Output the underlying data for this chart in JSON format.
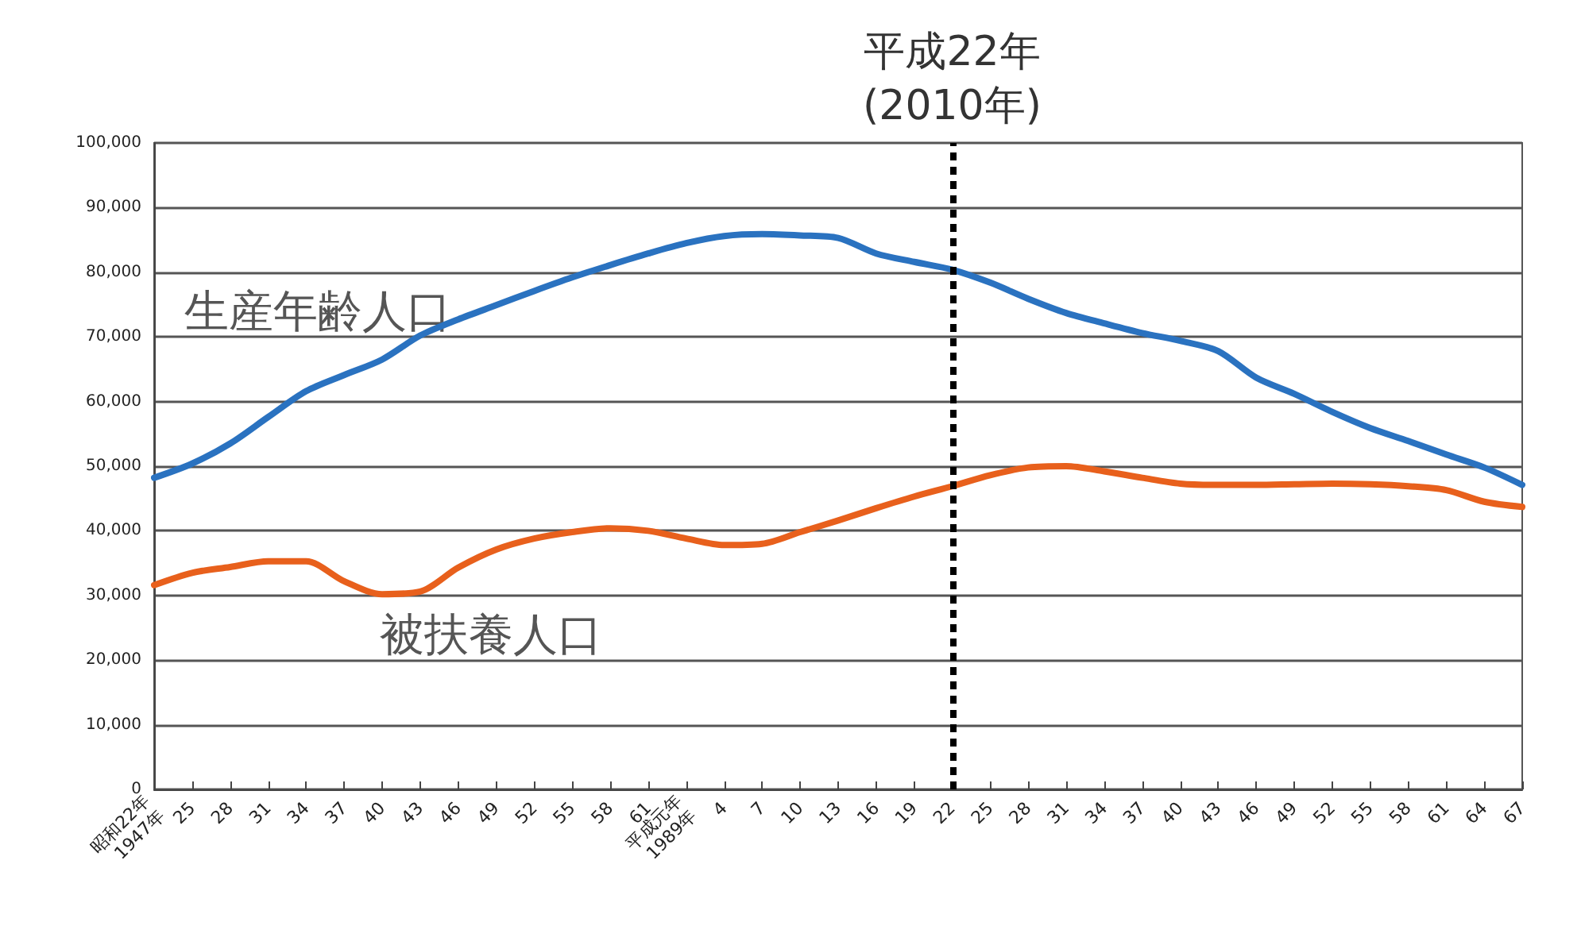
{
  "chart_data": {
    "type": "line",
    "categories": [
      "昭和22年\n1947年",
      "25",
      "28",
      "31",
      "34",
      "37",
      "40",
      "43",
      "46",
      "49",
      "52",
      "55",
      "58",
      "61",
      "平成元年\n1989年",
      "4",
      "7",
      "10",
      "13",
      "16",
      "19",
      "22",
      "25",
      "28",
      "31",
      "34",
      "37",
      "40",
      "43",
      "46",
      "49",
      "52",
      "55",
      "58",
      "61",
      "64",
      "67"
    ],
    "series": [
      {
        "name": "生産年齢人口",
        "color": "#2a72c0",
        "values": [
          48200,
          50400,
          53500,
          57600,
          61600,
          64100,
          66500,
          70200,
          72700,
          74900,
          77100,
          79200,
          81100,
          82900,
          84500,
          85600,
          85900,
          85700,
          85300,
          82900,
          81600,
          80400,
          78400,
          75900,
          73700,
          72100,
          70600,
          69400,
          67800,
          63700,
          61200,
          58400,
          55900,
          53900,
          51800,
          49800,
          47100
        ]
      },
      {
        "name": "被扶養人口",
        "color": "#e8601c",
        "values": [
          31600,
          33500,
          34400,
          35300,
          35300,
          32200,
          30200,
          30600,
          34300,
          37100,
          38800,
          39800,
          40400,
          40000,
          38800,
          37800,
          38000,
          39800,
          41600,
          43500,
          45300,
          46900,
          48600,
          49800,
          50000,
          49200,
          48200,
          47300,
          47100,
          47100,
          47200,
          47300,
          47200,
          46900,
          46300,
          44500,
          43700
        ]
      }
    ],
    "ylim": [
      0,
      100000
    ],
    "yticks": [
      0,
      {
        "value": 10000,
        "label": "10,000"
      },
      {
        "value": 20000,
        "label": "20,000"
      },
      {
        "value": 30000,
        "label": "30,000"
      },
      {
        "value": 40000,
        "label": "40,000"
      },
      {
        "value": 50000,
        "label": "50,000"
      },
      {
        "value": 60000,
        "label": "60,000"
      },
      {
        "value": 70000,
        "label": "70,000"
      },
      {
        "value": 80000,
        "label": "80,000"
      },
      {
        "value": 90000,
        "label": "90,000"
      },
      {
        "value": 100000,
        "label": "100,000"
      }
    ],
    "ref_lines": [
      {
        "axis": "x",
        "value": "22",
        "label": "平成22年\n(2010年)",
        "color": "#000000",
        "line_style": "dotted"
      }
    ],
    "grid": "y",
    "legend": false,
    "marker": "none",
    "line_style": "solid"
  }
}
